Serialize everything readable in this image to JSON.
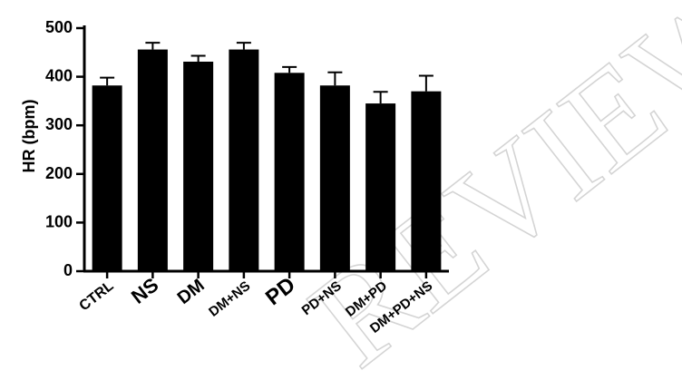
{
  "chart_data": {
    "type": "bar",
    "ylabel": "HR (bpm)",
    "xlabel": "",
    "title": "",
    "ylim": [
      0,
      500
    ],
    "yticks": [
      0,
      100,
      200,
      300,
      400,
      500
    ],
    "categories": [
      "CTRL",
      "NS",
      "DM",
      "DM+NS",
      "PD",
      "PD+NS",
      "DM+PD",
      "DM+PD+NS"
    ],
    "values": [
      382,
      456,
      431,
      456,
      408,
      382,
      345,
      370
    ],
    "errors": [
      16,
      14,
      12,
      14,
      12,
      27,
      24,
      32
    ],
    "bar_color": "#000000",
    "grid": false,
    "legend": "none"
  },
  "watermark": {
    "text": "REVIEW",
    "color": "#d4d4d4"
  }
}
